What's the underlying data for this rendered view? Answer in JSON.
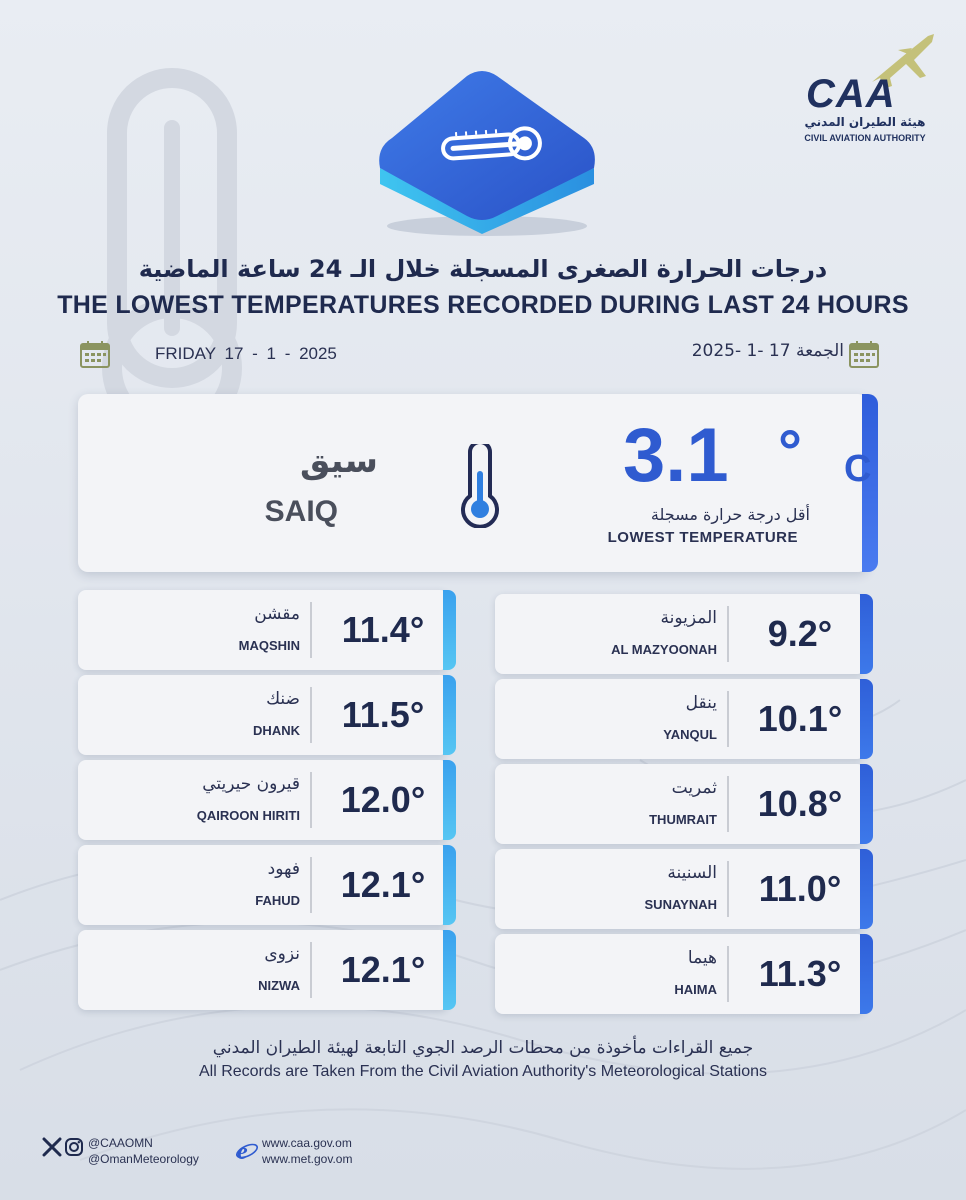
{
  "logo": {
    "brand": "CAA",
    "name_ar": "هيئة الطيران المدني",
    "name_en": "CIVIL AVIATION AUTHORITY"
  },
  "header": {
    "title_ar": "درجات الحرارة الصغرى المسجلة خلال الـ 24 ساعة الماضية",
    "title_en": "THE LOWEST TEMPERATURES RECORDED DURING LAST 24 HOURS",
    "date_en": "FRIDAY  17 - 1 - 2025",
    "date_ar": "الجمعة 17 -1 -2025"
  },
  "lowest": {
    "value": "3.1",
    "degree": "°",
    "unit": "C",
    "label_ar": "أقل درجة حرارة مسجلة",
    "label_en": "LOWEST TEMPERATURE",
    "station_ar": "سيق",
    "station_en": "SAIQ"
  },
  "stations_left": [
    {
      "name_ar": "مقشن",
      "name_en": "MAQSHIN",
      "temp": "11.4°"
    },
    {
      "name_ar": "ضنك",
      "name_en": "DHANK",
      "temp": "11.5°"
    },
    {
      "name_ar": "قيرون حيريتي",
      "name_en": "QAIROON HIRITI",
      "temp": "12.0°"
    },
    {
      "name_ar": "فهود",
      "name_en": "FAHUD",
      "temp": "12.1°"
    },
    {
      "name_ar": "نزوى",
      "name_en": "NIZWA",
      "temp": "12.1°"
    }
  ],
  "stations_right": [
    {
      "name_ar": "المزيونة",
      "name_en": "AL MAZYOONAH",
      "temp": "9.2°"
    },
    {
      "name_ar": "ينقل",
      "name_en": "YANQUL",
      "temp": "10.1°"
    },
    {
      "name_ar": "ثمريت",
      "name_en": "THUMRAIT",
      "temp": "10.8°"
    },
    {
      "name_ar": "السنينة",
      "name_en": "SUNAYNAH",
      "temp": "11.0°"
    },
    {
      "name_ar": "هيما",
      "name_en": "HAIMA",
      "temp": "11.3°"
    }
  ],
  "footer": {
    "note_ar": "جميع القراءات مأخوذة من محطات الرصد الجوي التابعة لهيئة الطيران المدني",
    "note_en": "All Records are Taken From the Civil Aviation Authority's Meteorological Stations",
    "social_1": "@CAAOMN",
    "social_2": "@OmanMeteorology",
    "web_1": "www.caa.gov.om",
    "web_2": "www.met.gov.om"
  },
  "colors": {
    "navy": "#1f2a4e",
    "accent_blue": "#2f5bd0",
    "stripe_light": "#3aa1ee",
    "calendar_olive": "#8b9460"
  }
}
